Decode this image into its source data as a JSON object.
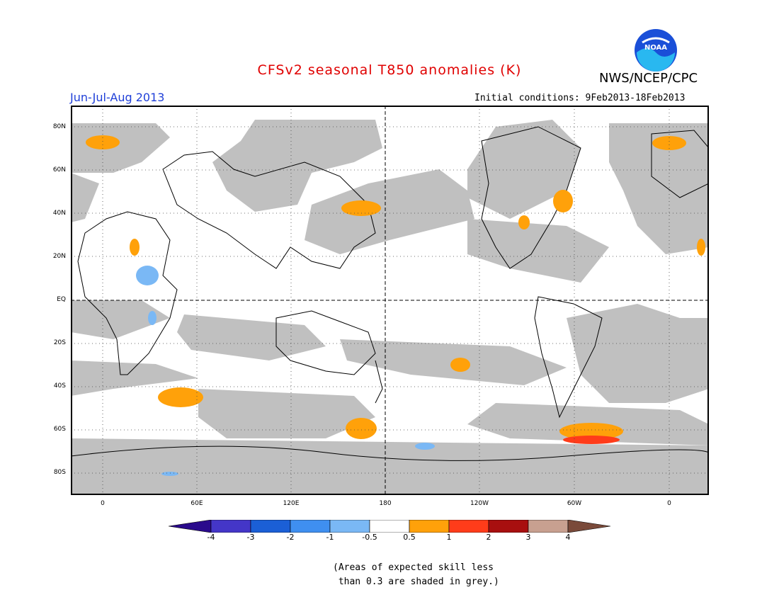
{
  "title": "CFSv2 seasonal T850 anomalies (K)",
  "agency": "NWS/NCEP/CPC",
  "logo_text": "NOAA",
  "season": "Jun-Jul-Aug 2013",
  "initial_conditions": "Initial conditions: 9Feb2013-18Feb2013",
  "map": {
    "lat_labels": [
      "80N",
      "60N",
      "40N",
      "20N",
      "EQ",
      "20S",
      "40S",
      "60S",
      "80S"
    ],
    "lon_labels": [
      "0",
      "60E",
      "120E",
      "180",
      "120W",
      "60W",
      "0"
    ],
    "colors": {
      "grey_mask": "#c0c0c0",
      "ocean": "#ffffff",
      "coast": "#000000"
    }
  },
  "colorbar": {
    "labels": [
      "-4",
      "-3",
      "-2",
      "-1",
      "-0.5",
      "0.5",
      "1",
      "2",
      "3",
      "4"
    ],
    "colors": [
      "#2a0a8c",
      "#4436c8",
      "#1b5fd6",
      "#3f8ff0",
      "#7ab8f5",
      "#ffffff",
      "#ffa10a",
      "#ff3c1a",
      "#a80f0f",
      "#c8a090",
      "#7a4a3a"
    ]
  },
  "note": "(Areas of expected skill less\n than 0.3 are shaded in grey.)"
}
